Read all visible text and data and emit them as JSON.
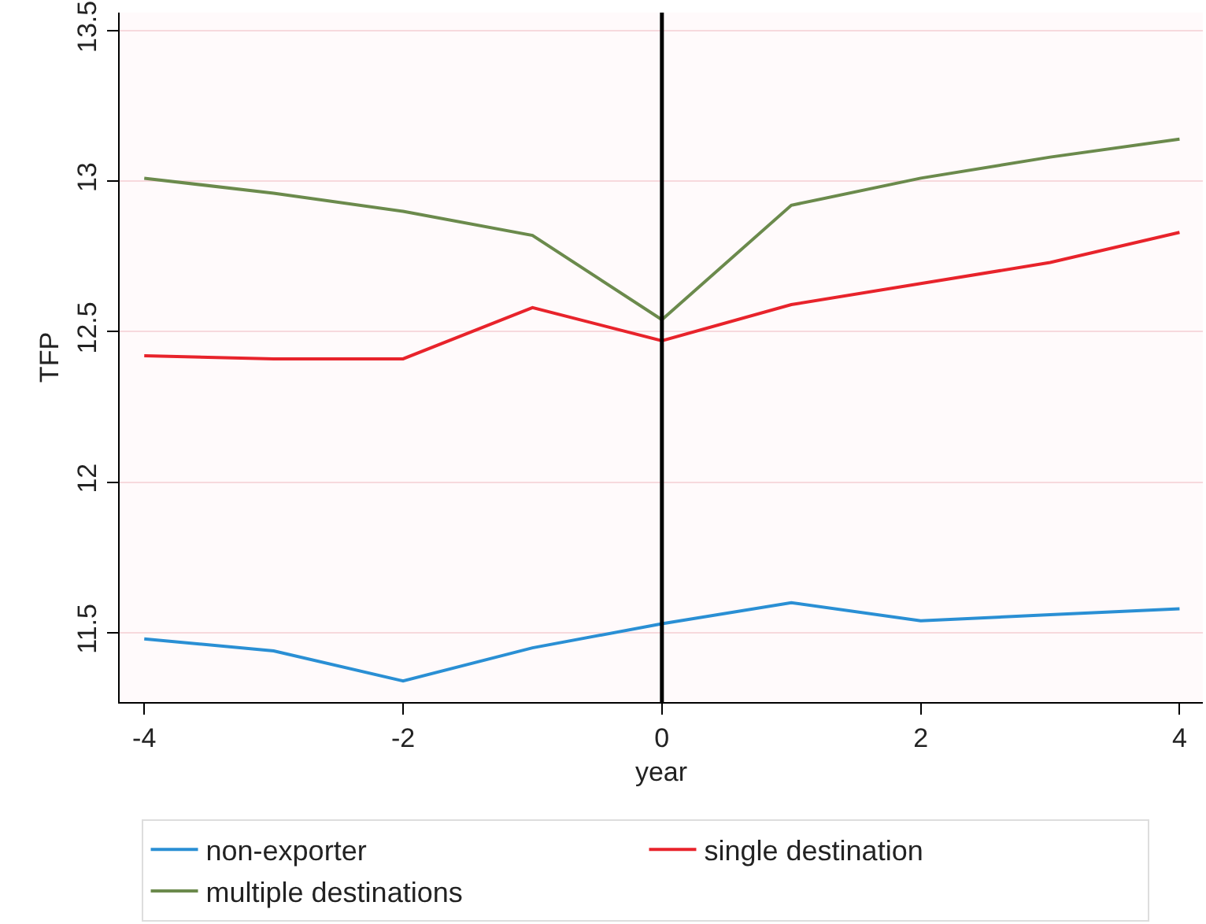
{
  "chart_data": {
    "type": "line",
    "xlabel": "year",
    "ylabel": "TFP",
    "x": [
      -4,
      -3,
      -2,
      -1,
      0,
      1,
      2,
      3,
      4
    ],
    "series": [
      {
        "name": "non-exporter",
        "color": "#2a8fd4",
        "values": [
          11.48,
          11.44,
          11.34,
          11.45,
          11.53,
          11.6,
          11.54,
          11.56,
          11.58
        ]
      },
      {
        "name": "single destination",
        "color": "#e8232b",
        "values": [
          12.42,
          12.41,
          12.41,
          12.58,
          12.47,
          12.59,
          12.66,
          12.73,
          12.83
        ]
      },
      {
        "name": "multiple destinations",
        "color": "#6b8a4c",
        "values": [
          13.01,
          12.96,
          12.9,
          12.82,
          12.54,
          12.92,
          13.01,
          13.08,
          13.14
        ]
      }
    ],
    "xlim": [
      -4.19,
      4.18
    ],
    "xticks": [
      -4,
      -2,
      0,
      2,
      4
    ],
    "ylim": [
      11.27,
      13.56
    ],
    "yticks": [
      11.5,
      12,
      12.5,
      13,
      13.5
    ],
    "ref_lines": [
      {
        "axis": "x",
        "value": 0,
        "color": "#000000"
      }
    ],
    "grid": "y",
    "legend": "bottom",
    "marker": "none",
    "line_style": "solid"
  }
}
